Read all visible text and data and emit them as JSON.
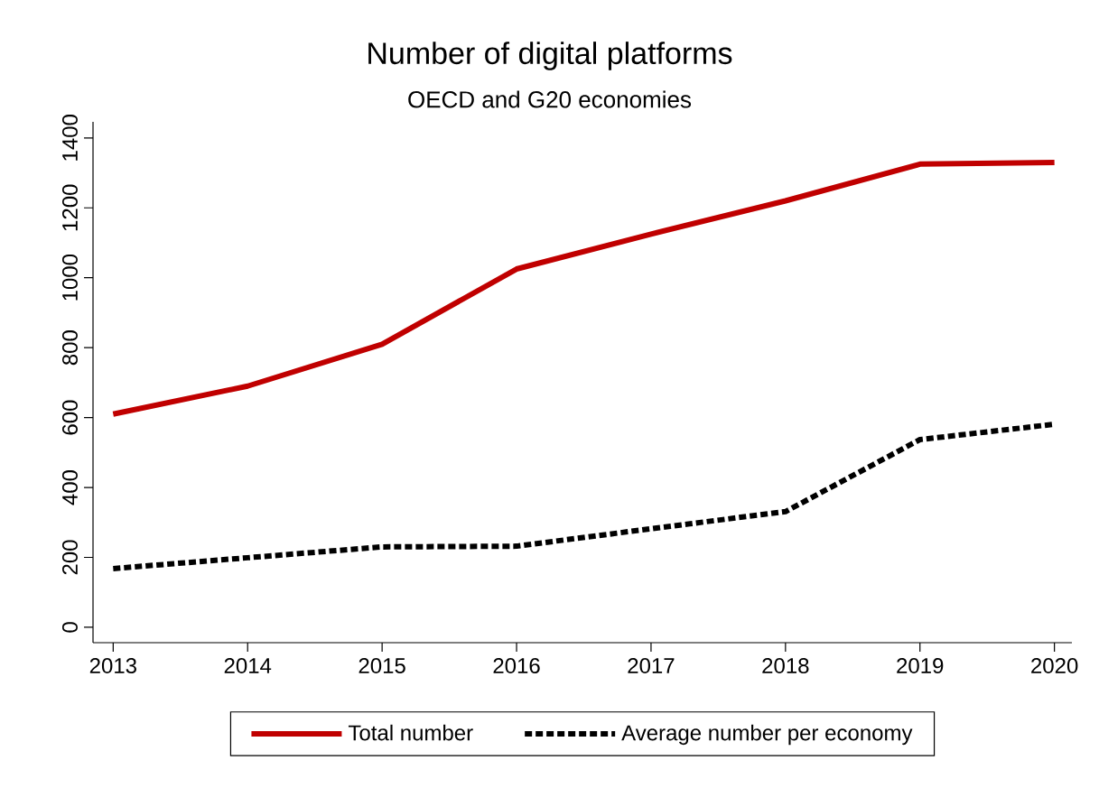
{
  "chart_data": {
    "type": "line",
    "title": "Number of digital platforms",
    "subtitle": "OECD and G20 economies",
    "x": [
      2013,
      2014,
      2015,
      2016,
      2017,
      2018,
      2019,
      2020
    ],
    "series": [
      {
        "name": "Total number",
        "color": "#c00000",
        "line_style": "solid",
        "values": [
          610,
          690,
          810,
          1025,
          1125,
          1220,
          1325,
          1330
        ]
      },
      {
        "name": "Average number per economy",
        "color": "#000000",
        "line_style": "dashed",
        "values": [
          168,
          199,
          230,
          232,
          282,
          331,
          537,
          581
        ]
      }
    ],
    "xlim": [
      2012.85,
      2020.13
    ],
    "xticks": [
      2013,
      2014,
      2015,
      2016,
      2017,
      2018,
      2019,
      2020
    ],
    "ylim": [
      -44,
      1446
    ],
    "yticks": [
      0,
      200,
      400,
      600,
      800,
      1000,
      1200,
      1400
    ],
    "legend": "bottom",
    "marker": "none"
  }
}
